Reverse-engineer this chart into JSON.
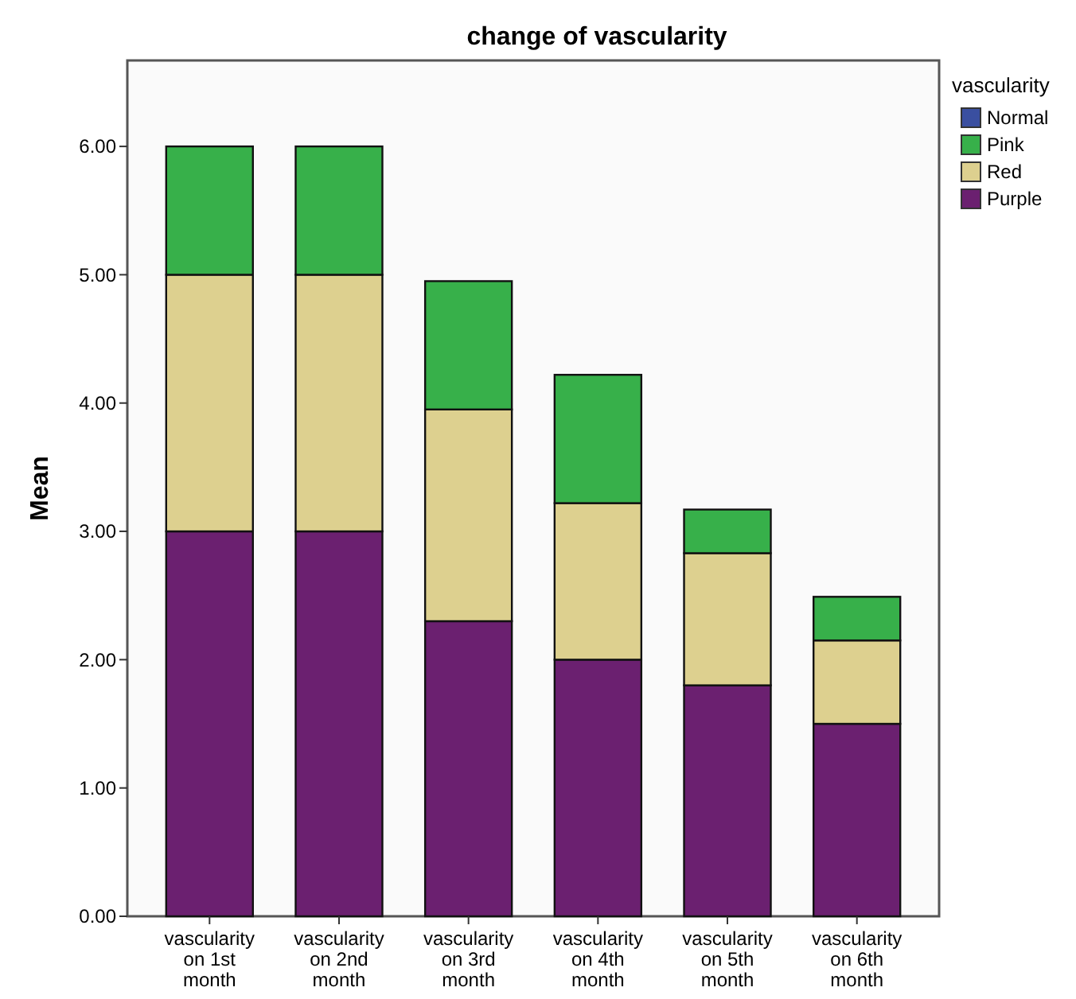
{
  "chart_data": {
    "type": "bar",
    "title": "change of vascularity",
    "ylabel": "Mean",
    "legend_title": "vascularity",
    "legend": "right",
    "stacked": true,
    "grid": false,
    "categories": [
      "vascularity on 1st month",
      "vascularity on 2nd month",
      "vascularity on 3rd month",
      "vascularity on 4th month",
      "vascularity on 5th month",
      "vascularity on 6th month"
    ],
    "ylim": [
      0,
      6.67
    ],
    "yticks": [
      {
        "value": 0,
        "label": "0.00"
      },
      {
        "value": 1,
        "label": "1.00"
      },
      {
        "value": 2,
        "label": "2.00"
      },
      {
        "value": 3,
        "label": "3.00"
      },
      {
        "value": 4,
        "label": "4.00"
      },
      {
        "value": 5,
        "label": "5.00"
      },
      {
        "value": 6,
        "label": "6.00"
      }
    ],
    "series": [
      {
        "name": "Purple",
        "color": "#6b2070",
        "values": [
          3,
          3,
          2.3,
          2,
          1.8,
          1.5
        ]
      },
      {
        "name": "Red",
        "color": "#ddd08f",
        "values": [
          2,
          2,
          1.65,
          1.22,
          1.03,
          0.65
        ]
      },
      {
        "name": "Pink",
        "color": "#37b04a",
        "values": [
          1,
          1,
          1,
          1,
          0.34,
          0.34
        ]
      },
      {
        "name": "Normal",
        "color": "#3a4fa0",
        "values": [
          0,
          0,
          0,
          0,
          0,
          0
        ]
      }
    ]
  }
}
